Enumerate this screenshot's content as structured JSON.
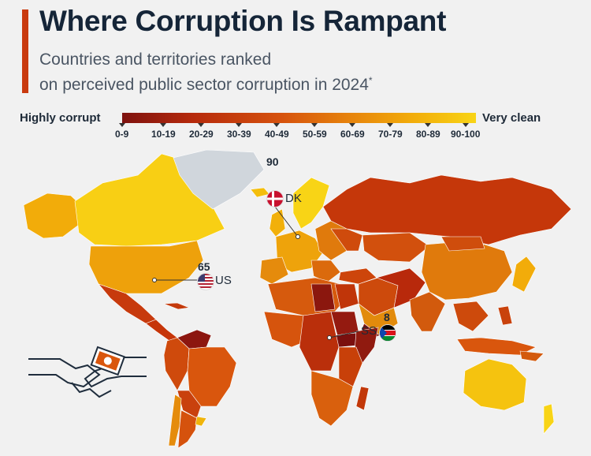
{
  "header": {
    "title": "Where Corruption Is Rampant",
    "subtitle_line1": "Countries and territories ranked",
    "subtitle_line2": "on perceived public sector corruption in 2024",
    "subtitle_mark": "*"
  },
  "legend": {
    "low_label": "Highly corrupt",
    "high_label": "Very clean",
    "bins": [
      "0-9",
      "10-19",
      "20-29",
      "30-39",
      "40-49",
      "50-59",
      "60-69",
      "70-79",
      "80-89",
      "90-100"
    ]
  },
  "colors": {
    "accent": "#c93a0f",
    "scale_low": "#7e120f",
    "scale_high": "#f8d416",
    "greenland": "#d0d6dc"
  },
  "highlights": [
    {
      "code": "DK",
      "score": "90",
      "flag_icon": "denmark-flag-icon"
    },
    {
      "code": "US",
      "score": "65",
      "flag_icon": "usa-flag-icon"
    },
    {
      "code": "SS",
      "score": "8",
      "flag_icon": "south-sudan-flag-icon"
    }
  ],
  "illustration_icon": "handshake-bribe-icon"
}
